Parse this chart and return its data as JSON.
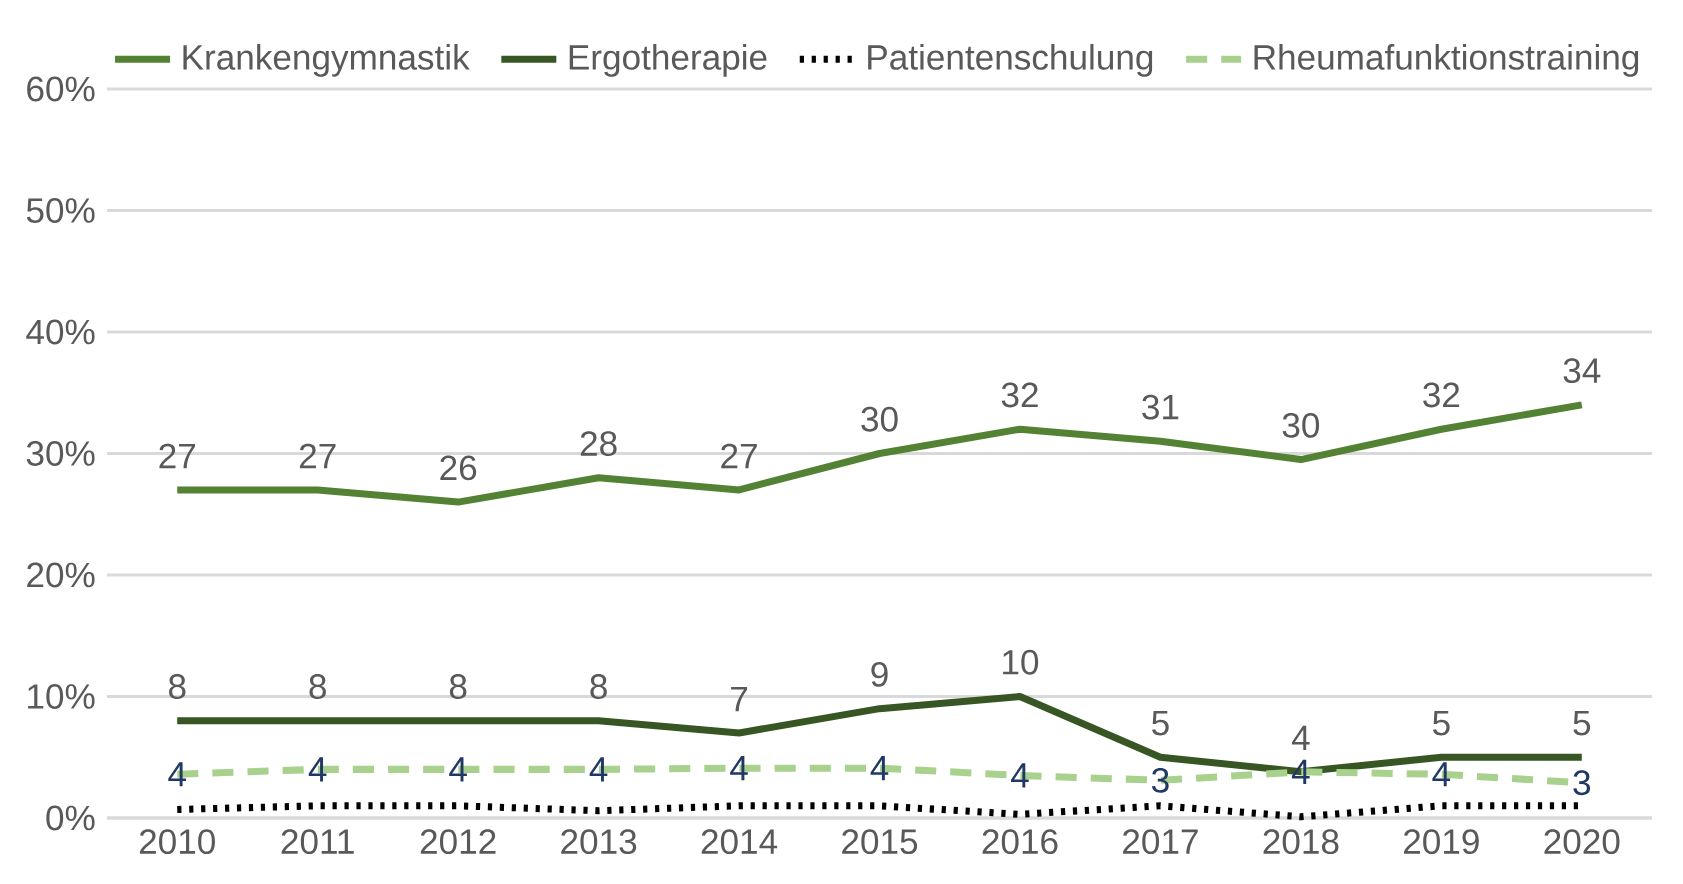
{
  "chart_data": {
    "type": "line",
    "categories": [
      "2010",
      "2011",
      "2012",
      "2013",
      "2014",
      "2015",
      "2016",
      "2017",
      "2018",
      "2019",
      "2020"
    ],
    "ylim": [
      0,
      60
    ],
    "yticks": [
      {
        "value": 0,
        "label": "0%"
      },
      {
        "value": 10,
        "label": "10%"
      },
      {
        "value": 20,
        "label": "20%"
      },
      {
        "value": 30,
        "label": "30%"
      },
      {
        "value": 40,
        "label": "40%"
      },
      {
        "value": 50,
        "label": "50%"
      },
      {
        "value": 60,
        "label": "60%"
      }
    ],
    "grid": "y",
    "legend": "top",
    "series": [
      {
        "name": "Krankengymnastik",
        "color": "#548235",
        "line_style": "solid",
        "values": [
          27,
          27,
          26,
          28,
          27,
          30,
          32,
          31,
          29.5,
          32,
          34
        ],
        "value_labels": [
          "27",
          "27",
          "26",
          "28",
          "27",
          "30",
          "32",
          "31",
          "30",
          "32",
          "34"
        ]
      },
      {
        "name": "Ergotherapie",
        "color": "#375623",
        "line_style": "solid",
        "values": [
          8,
          8,
          8,
          8,
          7,
          9,
          10,
          5,
          3.8,
          5,
          5
        ],
        "value_labels": [
          "8",
          "8",
          "8",
          "8",
          "7",
          "9",
          "10",
          "5",
          "4",
          "5",
          "5"
        ]
      },
      {
        "name": "Patientenschulung",
        "color": "#000000",
        "line_style": "dotted",
        "values": [
          0.7,
          1,
          1,
          0.6,
          1,
          1,
          0.3,
          1,
          0.1,
          1,
          1
        ]
      },
      {
        "name": "Rheumafunktionstraining",
        "color": "#a9d18e",
        "line_style": "dashed",
        "values": [
          3.6,
          4,
          4,
          4,
          4.1,
          4.1,
          3.5,
          3.1,
          3.8,
          3.6,
          2.9
        ],
        "value_labels": [
          "4",
          "4",
          "4",
          "4",
          "4",
          "4",
          "4",
          "3",
          "4",
          "4",
          "3"
        ]
      }
    ]
  }
}
